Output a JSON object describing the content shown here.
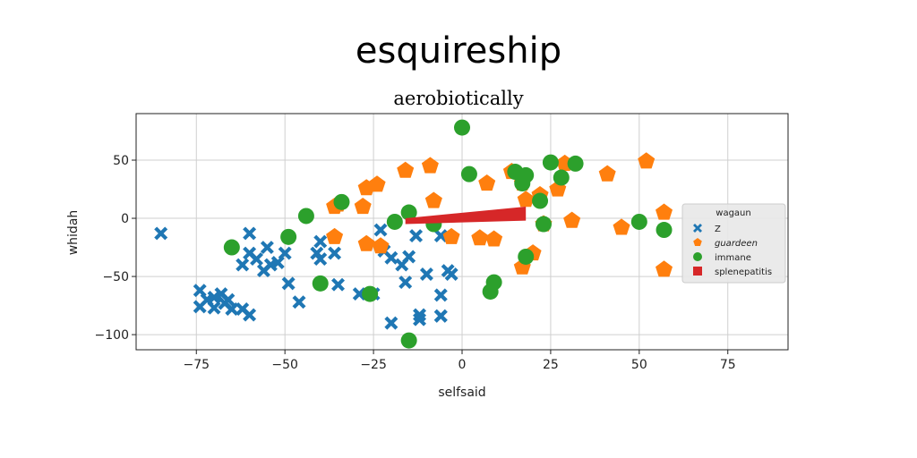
{
  "chart_data": {
    "type": "scatter",
    "title": "esquireship",
    "subtitle": "aerobiotically",
    "xlabel": "selfsaid",
    "ylabel": "whidah",
    "xlim": [
      -92,
      92
    ],
    "ylim": [
      -113,
      90
    ],
    "xticks": [
      -75,
      -50,
      -25,
      0,
      25,
      50,
      75
    ],
    "yticks": [
      -100,
      -50,
      0,
      50
    ],
    "grid": true,
    "legend": {
      "title": "wagaun",
      "placement": "right"
    },
    "series": [
      {
        "name": "Z",
        "marker": "x",
        "color": "#1f77b4",
        "points": [
          [
            -85,
            -13
          ],
          [
            -74,
            -62
          ],
          [
            -74,
            -76
          ],
          [
            -72,
            -70
          ],
          [
            -70,
            -68
          ],
          [
            -70,
            -77
          ],
          [
            -68,
            -65
          ],
          [
            -67,
            -73
          ],
          [
            -66,
            -70
          ],
          [
            -65,
            -78
          ],
          [
            -62,
            -78
          ],
          [
            -60,
            -83
          ],
          [
            -62,
            -40
          ],
          [
            -60,
            -13
          ],
          [
            -60,
            -30
          ],
          [
            -58,
            -35
          ],
          [
            -56,
            -45
          ],
          [
            -55,
            -25
          ],
          [
            -54,
            -40
          ],
          [
            -52,
            -38
          ],
          [
            -50,
            -30
          ],
          [
            -49,
            -56
          ],
          [
            -46,
            -72
          ],
          [
            -40,
            -20
          ],
          [
            -41,
            -30
          ],
          [
            -40,
            -35
          ],
          [
            -36,
            -30
          ],
          [
            -35,
            -57
          ],
          [
            -29,
            -65
          ],
          [
            -25,
            -65
          ],
          [
            -23,
            -10
          ],
          [
            -22,
            -28
          ],
          [
            -20,
            -34
          ],
          [
            -20,
            -90
          ],
          [
            -17,
            -40
          ],
          [
            -16,
            -55
          ],
          [
            -15,
            -33
          ],
          [
            -13,
            -15
          ],
          [
            -12,
            -83
          ],
          [
            -12,
            -87
          ],
          [
            -10,
            -48
          ],
          [
            -8,
            -5
          ],
          [
            -6,
            -15
          ],
          [
            -6,
            -84
          ],
          [
            -6,
            -66
          ],
          [
            -4,
            -45
          ],
          [
            -3,
            -48
          ],
          [
            -6,
            -84
          ]
        ]
      },
      {
        "name": "guardeen",
        "marker": "pentagon",
        "color": "#ff7f0e",
        "points": [
          [
            -36,
            10
          ],
          [
            -35,
            12
          ],
          [
            -36,
            -16
          ],
          [
            -28,
            10
          ],
          [
            -27,
            26
          ],
          [
            -27,
            -22
          ],
          [
            -24,
            29
          ],
          [
            -23,
            -24
          ],
          [
            -16,
            41
          ],
          [
            -9,
            45
          ],
          [
            -8,
            15
          ],
          [
            -3,
            -16
          ],
          [
            5,
            -17
          ],
          [
            7,
            30
          ],
          [
            9,
            -18
          ],
          [
            14,
            40
          ],
          [
            17,
            30
          ],
          [
            17,
            -42
          ],
          [
            18,
            16
          ],
          [
            20,
            -30
          ],
          [
            22,
            20
          ],
          [
            23,
            -5
          ],
          [
            29,
            47
          ],
          [
            31,
            -2
          ],
          [
            41,
            38
          ],
          [
            45,
            -8
          ],
          [
            52,
            49
          ],
          [
            57,
            5
          ],
          [
            57,
            -44
          ],
          [
            27,
            25
          ]
        ]
      },
      {
        "name": "immane",
        "marker": "circle",
        "color": "#2ca02c",
        "points": [
          [
            0,
            78
          ],
          [
            2,
            38
          ],
          [
            -8,
            -5
          ],
          [
            -19,
            -3
          ],
          [
            -34,
            14
          ],
          [
            -44,
            2
          ],
          [
            -49,
            -16
          ],
          [
            -65,
            -25
          ],
          [
            -40,
            -56
          ],
          [
            -26,
            -65
          ],
          [
            -15,
            5
          ],
          [
            -15,
            -105
          ],
          [
            8,
            -63
          ],
          [
            9,
            -55
          ],
          [
            15,
            40
          ],
          [
            17,
            30
          ],
          [
            18,
            37
          ],
          [
            18,
            -33
          ],
          [
            22,
            15
          ],
          [
            23,
            -5
          ],
          [
            25,
            48
          ],
          [
            28,
            35
          ],
          [
            32,
            47
          ],
          [
            50,
            -3
          ],
          [
            57,
            -10
          ]
        ]
      },
      {
        "name": "splenepatitis",
        "marker": "square",
        "color": "#d62728",
        "polygon": [
          [
            -16,
            -5
          ],
          [
            18,
            -2
          ],
          [
            18,
            10
          ],
          [
            -16,
            0
          ]
        ]
      }
    ]
  }
}
